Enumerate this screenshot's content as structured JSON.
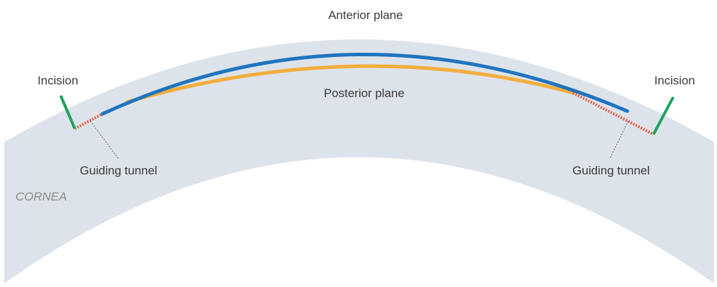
{
  "labels": {
    "anterior": "Anterior plane",
    "posterior": "Posterior plane",
    "incision_left": "Incision",
    "incision_right": "Incision",
    "tunnel_left": "Guiding tunnel",
    "tunnel_right": "Guiding tunnel",
    "cornea": "CORNEA"
  },
  "colors": {
    "cornea": "#dde3ea",
    "anterior": "#1f74be",
    "posterior": "#f4ad3d",
    "incision": "#1aa35c",
    "tunnel": "#e8593b",
    "leader": "#666666",
    "text": "#3a3a3a"
  }
}
